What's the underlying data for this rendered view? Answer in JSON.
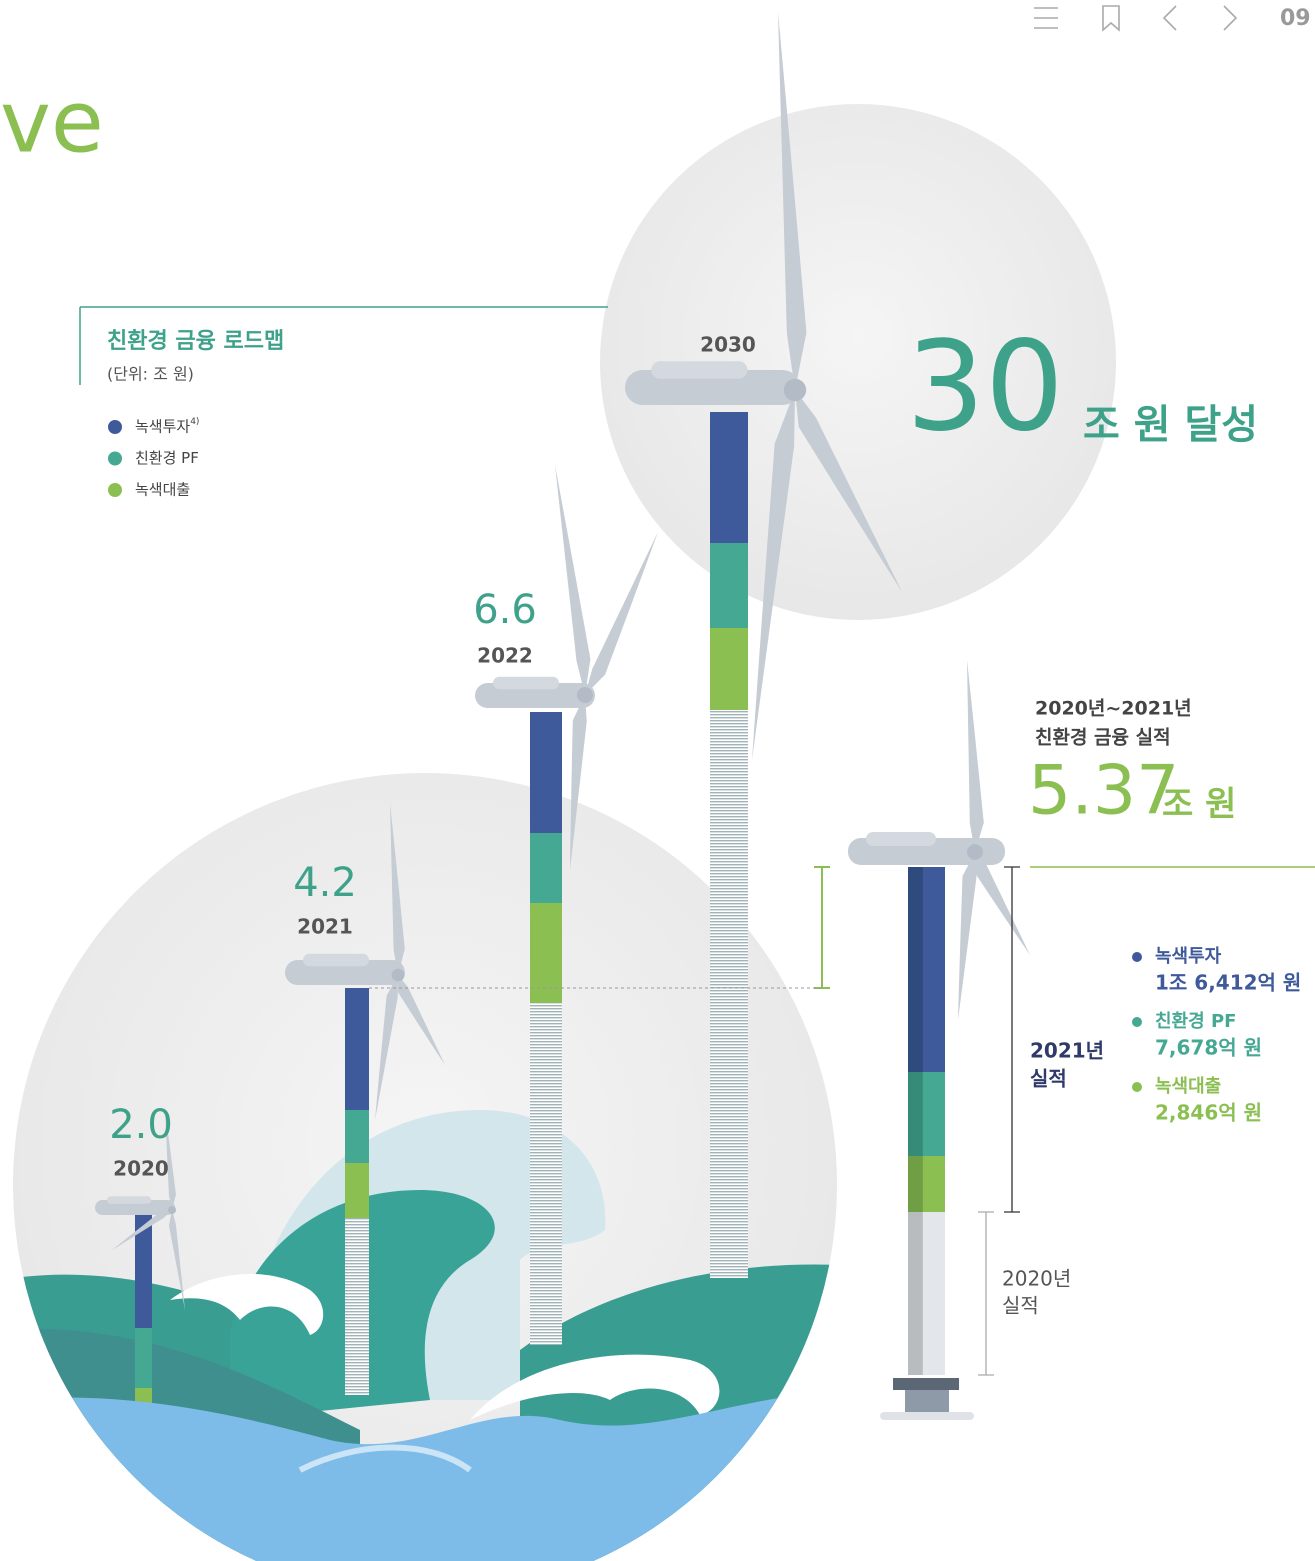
{
  "nav": {
    "page": "09"
  },
  "heading_fragment": "ve",
  "roadmap": {
    "title": "친환경 금융 로드맵",
    "unit": "(단위: 조 원)",
    "legend": [
      {
        "name": "녹색투자",
        "note": "4)",
        "color": "#3f5a9a"
      },
      {
        "name": "친환경 PF",
        "color": "#45a893"
      },
      {
        "name": "녹색대출",
        "color": "#8bbf52"
      }
    ],
    "towers": [
      {
        "year": "2020",
        "total": "2.0"
      },
      {
        "year": "2021",
        "total": "4.2"
      },
      {
        "year": "2022",
        "total": "6.6"
      },
      {
        "year": "2030"
      }
    ]
  },
  "goal": {
    "number": "30",
    "suffix": "조 원 달성"
  },
  "performance": {
    "period": "2020년~2021년",
    "title": "친환경 금융 실적",
    "total": "5.37",
    "unit": "조 원",
    "label_2021": [
      "2021년",
      "실적"
    ],
    "label_2020": [
      "2020년",
      "실적"
    ],
    "items": [
      {
        "name": "녹색투자",
        "amount": "1조 6,412억 원",
        "color": "#3f5a9a"
      },
      {
        "name": "친환경 PF",
        "amount": "7,678억 원",
        "color": "#45a893"
      },
      {
        "name": "녹색대출",
        "amount": "2,846억 원",
        "color": "#8bbf52"
      }
    ]
  }
}
